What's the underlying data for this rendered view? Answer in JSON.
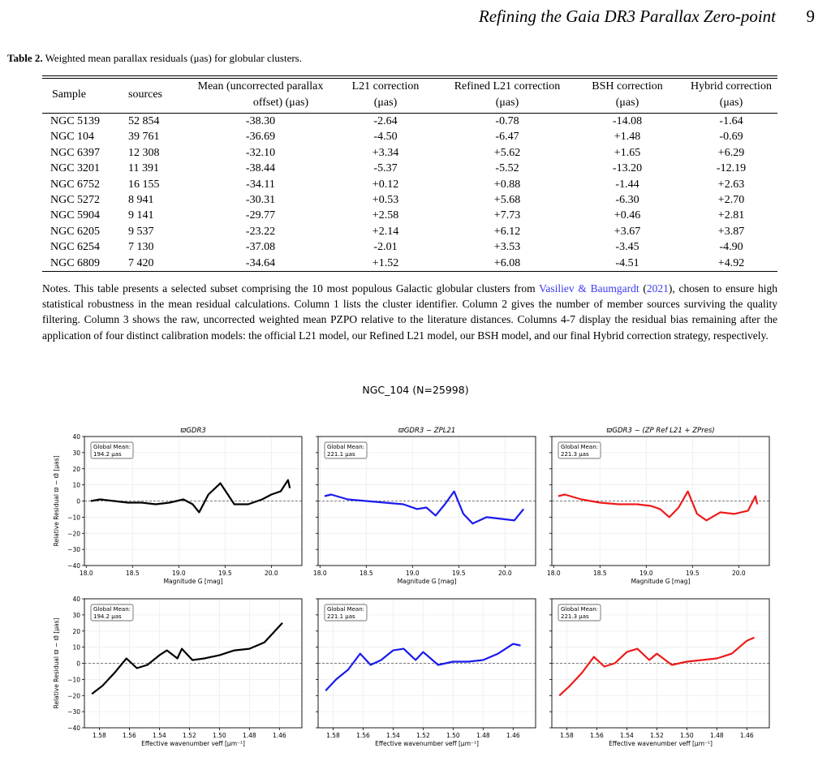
{
  "header": {
    "running_title": "Refining the Gaia DR3 Parallax Zero-point",
    "page_number": "9"
  },
  "table": {
    "caption_label": "Table 2.",
    "caption_text": "Weighted mean parallax residuals (μas) for globular clusters.",
    "headers": [
      {
        "line1": "Sample",
        "line2": ""
      },
      {
        "line1": "sources",
        "line2": ""
      },
      {
        "line1": "Mean (uncorrected parallax",
        "line2": "offset) (μas)"
      },
      {
        "line1": "L21 correction",
        "line2": "(μas)"
      },
      {
        "line1": "Refined L21 correction",
        "line2": "(μas)"
      },
      {
        "line1": "BSH correction",
        "line2": "(μas)"
      },
      {
        "line1": "Hybrid correction",
        "line2": "(μas)"
      }
    ],
    "rows": [
      [
        "NGC 5139",
        "52 854",
        "-38.30",
        "-2.64",
        "-0.78",
        "-14.08",
        "-1.64"
      ],
      [
        "NGC 104",
        "39 761",
        "-36.69",
        "-4.50",
        "-6.47",
        "+1.48",
        "-0.69"
      ],
      [
        "NGC 6397",
        "12 308",
        "-32.10",
        "+3.34",
        "+5.62",
        "+1.65",
        "+6.29"
      ],
      [
        "NGC 3201",
        "11 391",
        "-38.44",
        "-5.37",
        "-5.52",
        "-13.20",
        "-12.19"
      ],
      [
        "NGC 6752",
        "16 155",
        "-34.11",
        "+0.12",
        "+0.88",
        "-1.44",
        "+2.63"
      ],
      [
        "NGC 5272",
        "8 941",
        "-30.31",
        "+0.53",
        "+5.68",
        "-6.30",
        "+2.70"
      ],
      [
        "NGC 5904",
        "9 141",
        "-29.77",
        "+2.58",
        "+7.73",
        "+0.46",
        "+2.81"
      ],
      [
        "NGC 6205",
        "9 537",
        "-23.22",
        "+2.14",
        "+6.12",
        "+3.67",
        "+3.87"
      ],
      [
        "NGC 6254",
        "7 130",
        "-37.08",
        "-2.01",
        "+3.53",
        "-3.45",
        "-4.90"
      ],
      [
        "NGC 6809",
        "7 420",
        "-34.64",
        "+1.52",
        "+6.08",
        "-4.51",
        "+4.92"
      ]
    ],
    "notes_pre": "Notes. This table presents a selected subset comprising the 10 most populous Galactic globular clusters from ",
    "notes_link1": "Vasiliev & Baumgardt",
    "notes_mid1": " (",
    "notes_link2": "2021",
    "notes_post": "), chosen to ensure high statistical robustness in the mean residual calculations. Column 1 lists the cluster identifier. Column 2 gives the number of member sources surviving the quality filtering. Column 3 shows the raw, uncorrected weighted mean PZPO relative to the literature distances. Columns 4-7 display the residual bias remaining after the application of four distinct calibration models: the official L21 model, our Refined L21 model, our BSH model, and our final Hybrid correction strategy, respectively.",
    "link_color": "#3a3af0"
  },
  "figure": {
    "title": "NGC_104 (N=25998)",
    "column_titles": [
      "ϖGDR3",
      "ϖGDR3 − ZPL21",
      "ϖGDR3 − (ZP Ref L21 + ZPres)"
    ],
    "ylabel": "Relative Residual ϖ − ϖ̂ [μas]",
    "xlabel_top": "Magnitude G [mag]",
    "xlabel_bottom": "Effective wavenumber νeff [μm⁻¹]",
    "legend_label": "Global Mean:",
    "series_colors": [
      "#000000",
      "#1a1aee",
      "#ee1a1a"
    ]
  },
  "chart_data": [
    {
      "type": "line",
      "title": "ϖGDR3",
      "xlabel": "",
      "ylabel": "Relative Residual ϖ − ϖ̂ [μas]",
      "xlim": [
        17.98,
        20.33
      ],
      "ylim": [
        -40,
        40
      ],
      "grid": true,
      "annotation": "Global Mean:\n194.2 μas",
      "xticks": [
        "18.0",
        "18.5",
        "19.0",
        "19.5",
        "20.0"
      ],
      "yticks": [
        "40",
        "30",
        "20",
        "10",
        "0",
        "−10",
        "−20",
        "−30",
        "−40"
      ],
      "x": [
        18.05,
        18.15,
        18.3,
        18.45,
        18.6,
        18.75,
        18.9,
        19.05,
        19.15,
        19.22,
        19.32,
        19.45,
        19.6,
        19.75,
        19.9,
        20.0,
        20.1,
        20.18,
        20.2
      ],
      "y": [
        0,
        1,
        0,
        -1,
        -1,
        -2,
        -1,
        1,
        -2,
        -7,
        4,
        11,
        -2,
        -2,
        1,
        4,
        6,
        13,
        8
      ]
    },
    {
      "type": "line",
      "title": "ϖGDR3 − ZPL21",
      "xlabel": "",
      "ylabel": "",
      "xlim": [
        17.98,
        20.33
      ],
      "ylim": [
        -40,
        40
      ],
      "grid": true,
      "annotation": "Global Mean:\n221.1 μas",
      "xticks": [
        "18.0",
        "18.5",
        "19.0",
        "19.5",
        "20.0"
      ],
      "yticks": [],
      "x": [
        18.05,
        18.12,
        18.3,
        18.5,
        18.7,
        18.9,
        19.05,
        19.15,
        19.25,
        19.35,
        19.45,
        19.55,
        19.65,
        19.8,
        19.95,
        20.1,
        20.2
      ],
      "y": [
        3,
        4,
        1,
        0,
        -1,
        -2,
        -5,
        -4,
        -9,
        -2,
        6,
        -8,
        -14,
        -10,
        -11,
        -12,
        -5
      ]
    },
    {
      "type": "line",
      "title": "ϖGDR3 − (ZP Ref L21 + ZPres)",
      "xlabel": "",
      "ylabel": "",
      "xlim": [
        17.98,
        20.33
      ],
      "ylim": [
        -40,
        40
      ],
      "grid": true,
      "annotation": "Global Mean:\n221.3 μas",
      "xticks": [
        "18.0",
        "18.5",
        "19.0",
        "19.5",
        "20.0"
      ],
      "yticks": [],
      "x": [
        18.05,
        18.12,
        18.3,
        18.5,
        18.7,
        18.9,
        19.05,
        19.15,
        19.25,
        19.35,
        19.45,
        19.55,
        19.65,
        19.8,
        19.95,
        20.1,
        20.18,
        20.2
      ],
      "y": [
        3,
        4,
        1,
        -1,
        -2,
        -2,
        -3,
        -5,
        -10,
        -4,
        6,
        -8,
        -12,
        -7,
        -8,
        -6,
        3,
        -2
      ]
    },
    {
      "type": "line",
      "title": "",
      "xlabel": "",
      "ylabel": "Relative Residual ϖ − ϖ̂ [μas]",
      "xlim": [
        1.59,
        1.445
      ],
      "ylim": [
        -40,
        40
      ],
      "grid": true,
      "annotation": "Global Mean:\n194.2 μas",
      "xticks": [
        "1.58",
        "1.56",
        "1.54",
        "1.52",
        "1.50",
        "1.48",
        "1.46"
      ],
      "yticks": [
        "40",
        "30",
        "20",
        "10",
        "0",
        "−10",
        "−20",
        "−30",
        "−40"
      ],
      "x": [
        1.585,
        1.578,
        1.57,
        1.562,
        1.555,
        1.548,
        1.54,
        1.535,
        1.528,
        1.525,
        1.518,
        1.51,
        1.5,
        1.49,
        1.48,
        1.47,
        1.462,
        1.458
      ],
      "y": [
        -19,
        -14,
        -6,
        3,
        -3,
        -1,
        5,
        8,
        3,
        9,
        2,
        3,
        5,
        8,
        9,
        13,
        21,
        25
      ]
    },
    {
      "type": "line",
      "title": "",
      "xlabel": "",
      "ylabel": "",
      "xlim": [
        1.59,
        1.445
      ],
      "ylim": [
        -40,
        40
      ],
      "grid": true,
      "annotation": "Global Mean:\n221.1 μas",
      "xticks": [
        "1.58",
        "1.56",
        "1.54",
        "1.52",
        "1.50",
        "1.48",
        "1.46"
      ],
      "yticks": [],
      "x": [
        1.585,
        1.578,
        1.57,
        1.562,
        1.555,
        1.548,
        1.54,
        1.533,
        1.525,
        1.52,
        1.51,
        1.5,
        1.49,
        1.48,
        1.47,
        1.46,
        1.455
      ],
      "y": [
        -17,
        -10,
        -4,
        6,
        -1,
        2,
        8,
        9,
        2,
        7,
        -1,
        1,
        1,
        2,
        6,
        12,
        11
      ]
    },
    {
      "type": "line",
      "title": "",
      "xlabel": "",
      "ylabel": "",
      "xlim": [
        1.59,
        1.445
      ],
      "ylim": [
        -40,
        40
      ],
      "grid": true,
      "annotation": "Global Mean:\n221.3 μas",
      "xticks": [
        "1.58",
        "1.56",
        "1.54",
        "1.52",
        "1.50",
        "1.48",
        "1.46"
      ],
      "yticks": [],
      "x": [
        1.585,
        1.578,
        1.57,
        1.562,
        1.555,
        1.548,
        1.54,
        1.533,
        1.525,
        1.52,
        1.51,
        1.5,
        1.49,
        1.48,
        1.47,
        1.46,
        1.455
      ],
      "y": [
        -20,
        -14,
        -6,
        4,
        -2,
        0,
        7,
        9,
        2,
        6,
        -1,
        1,
        2,
        3,
        6,
        14,
        16
      ]
    }
  ]
}
